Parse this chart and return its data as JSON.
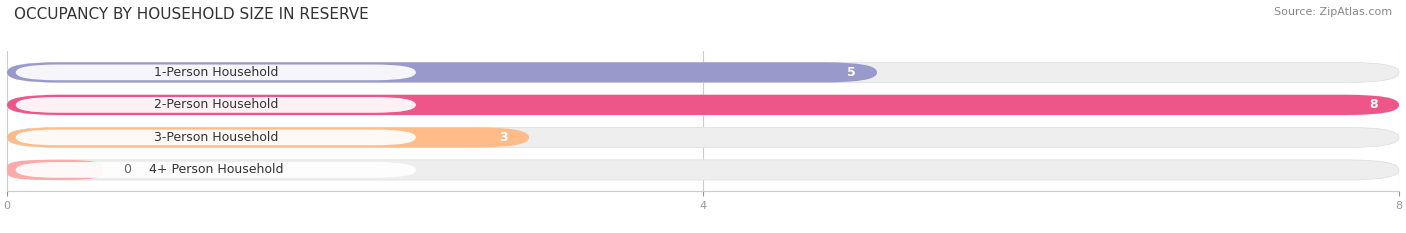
{
  "title": "OCCUPANCY BY HOUSEHOLD SIZE IN RESERVE",
  "source": "Source: ZipAtlas.com",
  "categories": [
    "1-Person Household",
    "2-Person Household",
    "3-Person Household",
    "4+ Person Household"
  ],
  "values": [
    5,
    8,
    3,
    0
  ],
  "bar_colors": [
    "#9999cc",
    "#ee5588",
    "#ffbb88",
    "#ffaaaa"
  ],
  "background_color": "#ffffff",
  "bar_background_color": "#eeeeee",
  "xlim": [
    0,
    8
  ],
  "xticks": [
    0,
    4,
    8
  ],
  "title_fontsize": 11,
  "label_fontsize": 9,
  "value_fontsize": 9,
  "source_fontsize": 8,
  "bar_height": 0.62,
  "rounding": 0.3
}
